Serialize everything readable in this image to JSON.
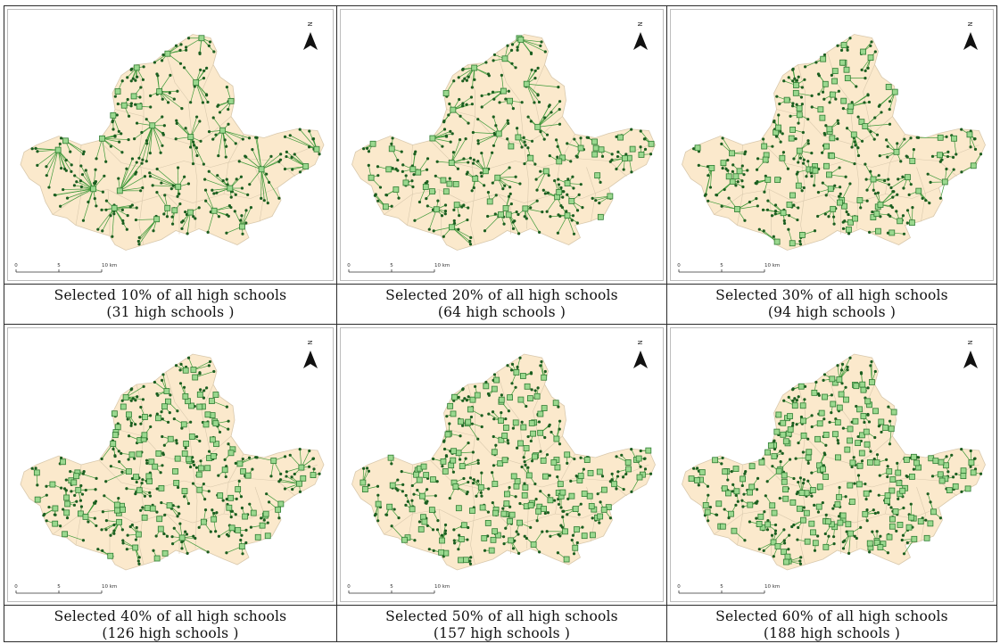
{
  "panels": [
    {
      "caption_line1": "Selected 10% of all high schools",
      "caption_line2": "(31 high schools )",
      "percent": 10,
      "schools": 31
    },
    {
      "caption_line1": "Selected 20% of all high schools",
      "caption_line2": "(64 high schools )",
      "percent": 20,
      "schools": 64
    },
    {
      "caption_line1": "Selected 30% of all high schools",
      "caption_line2": "(94 high schools )",
      "percent": 30,
      "schools": 94
    },
    {
      "caption_line1": "Selected 40% of all high schools",
      "caption_line2": "(126 high schools )",
      "percent": 40,
      "schools": 126
    },
    {
      "caption_line1": "Selected 50% of all high schools",
      "caption_line2": "(157 high schools )",
      "percent": 50,
      "schools": 157
    },
    {
      "caption_line1": "Selected 60% of all high schools",
      "caption_line2": "(188 high schools )",
      "percent": 60,
      "schools": 188
    }
  ],
  "map": {
    "north_label": "N",
    "scale_labels": [
      "0",
      "5",
      "10 km"
    ],
    "colors": {
      "land": "#fbe9cc",
      "boundary": "#d9c9ad",
      "school": "#9bd88f",
      "school_stroke": "#2e7d32",
      "link": "#3f9a3a",
      "point": "#1b5e20"
    }
  }
}
